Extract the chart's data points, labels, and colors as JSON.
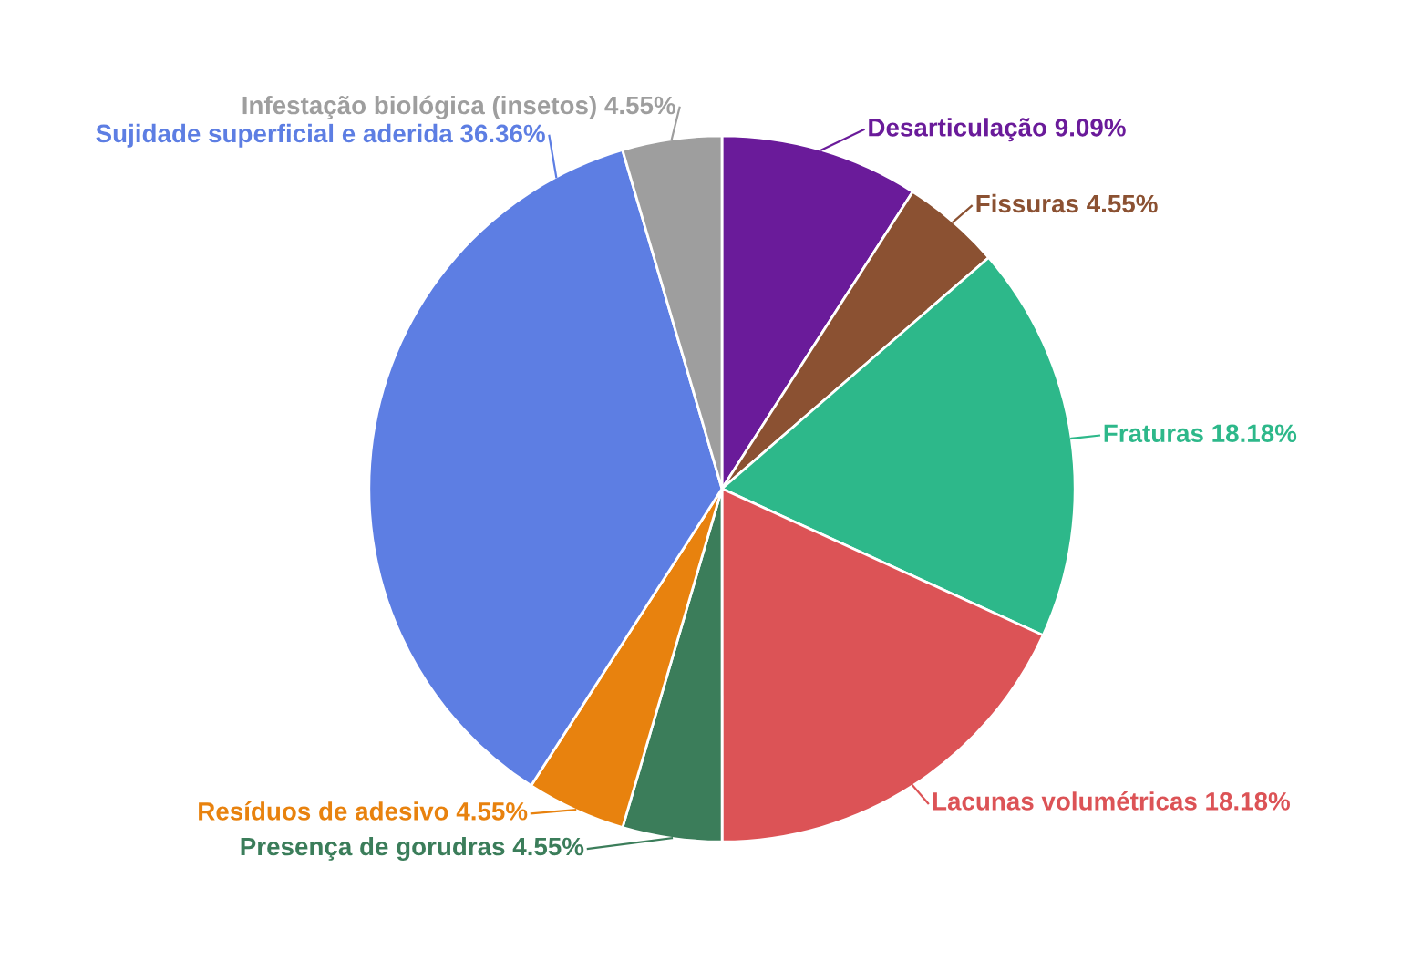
{
  "chart_data": {
    "type": "pie",
    "categories": [
      "Desarticulação",
      "Fissuras",
      "Fraturas",
      "Lacunas volumétricas",
      "Presença de gorudras",
      "Resíduos de adesivo",
      "Sujidade superficial e aderida",
      "Infestação biológica (insetos)"
    ],
    "values": [
      9.09,
      4.55,
      18.18,
      18.18,
      4.55,
      4.55,
      36.36,
      4.55
    ],
    "value_labels": [
      "9.09%",
      "4.55%",
      "18.18%",
      "18.18%",
      "4.55%",
      "4.55%",
      "36.36%",
      "4.55%"
    ],
    "colors": [
      "#6a1b9a",
      "#8b5132",
      "#2db88a",
      "#dc5356",
      "#3b7d5a",
      "#e8820e",
      "#5d7ee3",
      "#9e9e9e"
    ],
    "legend": false
  }
}
